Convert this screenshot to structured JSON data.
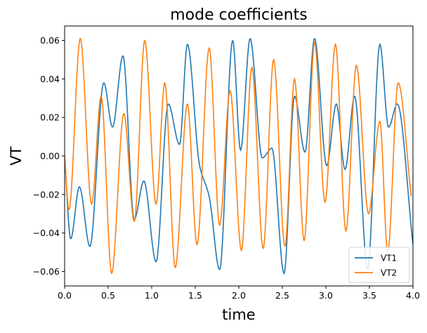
{
  "chart_data": {
    "type": "line",
    "title": "mode coefficients",
    "xlabel": "time",
    "ylabel": "VT",
    "xlim": [
      0.0,
      4.0
    ],
    "ylim": [
      -0.0675,
      0.0675
    ],
    "xticks": [
      "0.0",
      "0.5",
      "1.0",
      "1.5",
      "2.0",
      "2.5",
      "3.0",
      "3.5",
      "4.0"
    ],
    "xtick_values": [
      0.0,
      0.5,
      1.0,
      1.5,
      2.0,
      2.5,
      3.0,
      3.5,
      4.0
    ],
    "yticks": [
      "−0.06",
      "−0.04",
      "−0.02",
      "0.00",
      "0.02",
      "0.04",
      "0.06"
    ],
    "ytick_values": [
      -0.06,
      -0.04,
      -0.02,
      0.0,
      0.02,
      0.04,
      0.06
    ],
    "grid": false,
    "legend_position": "lower-right",
    "series": [
      {
        "name": "VT1",
        "color": "#1f77b4",
        "x": [
          0.0,
          0.07,
          0.17,
          0.29,
          0.45,
          0.55,
          0.67,
          0.8,
          0.91,
          1.05,
          1.19,
          1.32,
          1.41,
          1.55,
          1.66,
          1.78,
          1.93,
          2.02,
          2.13,
          2.27,
          2.38,
          2.52,
          2.64,
          2.76,
          2.87,
          3.01,
          3.12,
          3.22,
          3.33,
          3.48,
          3.62,
          3.72,
          3.82,
          4.0
        ],
        "values": [
          0.0,
          -0.043,
          -0.016,
          -0.047,
          0.038,
          0.015,
          0.052,
          -0.033,
          -0.013,
          -0.055,
          0.027,
          0.006,
          0.058,
          -0.005,
          -0.021,
          -0.059,
          0.06,
          0.003,
          0.061,
          -0.001,
          0.004,
          -0.061,
          0.031,
          0.002,
          0.061,
          -0.005,
          0.027,
          -0.007,
          0.031,
          -0.059,
          0.058,
          0.015,
          0.027,
          -0.046
        ]
      },
      {
        "name": "VT2",
        "color": "#ff7f0e",
        "x": [
          0.0,
          0.05,
          0.18,
          0.31,
          0.42,
          0.54,
          0.68,
          0.8,
          0.92,
          1.05,
          1.15,
          1.27,
          1.41,
          1.52,
          1.66,
          1.78,
          1.9,
          2.03,
          2.15,
          2.28,
          2.4,
          2.53,
          2.64,
          2.75,
          2.87,
          2.99,
          3.11,
          3.23,
          3.35,
          3.49,
          3.62,
          3.71,
          3.83,
          3.98
        ],
        "values": [
          0.0,
          -0.028,
          0.061,
          -0.025,
          0.031,
          -0.061,
          0.022,
          -0.034,
          0.06,
          -0.025,
          0.038,
          -0.058,
          0.027,
          -0.046,
          0.056,
          -0.036,
          0.034,
          -0.049,
          0.046,
          -0.048,
          0.05,
          -0.047,
          0.04,
          -0.044,
          0.059,
          -0.024,
          0.058,
          -0.039,
          0.047,
          -0.03,
          0.018,
          -0.05,
          0.038,
          -0.021
        ]
      }
    ]
  }
}
